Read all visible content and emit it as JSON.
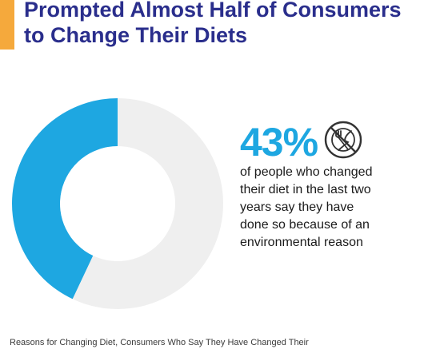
{
  "header": {
    "title_lines": [
      "Prompted Almost Half of Consumers",
      "to Change Their Diets"
    ],
    "accent_color": "#f5a93c",
    "title_color": "#2a2e8c"
  },
  "stat": {
    "value": "43%",
    "description_lines": [
      "of people who changed",
      "their diet in the last two",
      "years say they have",
      "done so because of an",
      "environmental reason"
    ],
    "icon": "no-eating-plate-fork-knife-icon"
  },
  "footnote": "Reasons for Changing Diet, Consumers Who Say They Have Changed Their",
  "chart_data": {
    "type": "pie",
    "style": "donut",
    "slices": [
      {
        "value": 43,
        "color": "#1ea7e1"
      },
      {
        "value": 57,
        "color": "#efefef"
      }
    ],
    "start_angle_deg": 0,
    "direction": "counterclockwise"
  }
}
